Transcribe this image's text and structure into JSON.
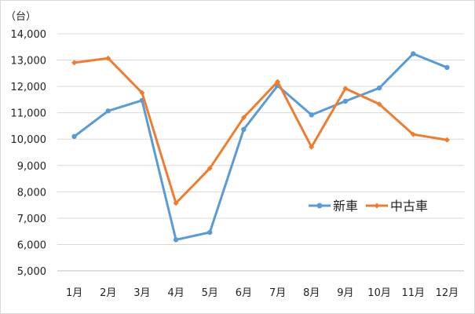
{
  "chart_data": {
    "type": "line",
    "unit_label": "（台）",
    "categories": [
      "1月",
      "2月",
      "3月",
      "4月",
      "5月",
      "6月",
      "7月",
      "8月",
      "9月",
      "10月",
      "11月",
      "12月"
    ],
    "ylim": [
      5000,
      14000
    ],
    "yticks": [
      5000,
      6000,
      7000,
      8000,
      9000,
      10000,
      11000,
      12000,
      13000,
      14000
    ],
    "ytick_labels": [
      "5,000",
      "6,000",
      "7,000",
      "8,000",
      "9,000",
      "10,000",
      "11,000",
      "12,000",
      "13,000",
      "14,000"
    ],
    "grid": true,
    "legend_position": "right",
    "series": [
      {
        "name": "新車",
        "color": "#5b9bd5",
        "marker": "circle",
        "values": [
          10100,
          11070,
          11470,
          6180,
          6460,
          10370,
          12030,
          10920,
          11440,
          11940,
          13240,
          12720
        ]
      },
      {
        "name": "中古車",
        "color": "#ed7d31",
        "marker": "diamond",
        "values": [
          12900,
          13070,
          11760,
          7570,
          8890,
          10820,
          12180,
          9700,
          11920,
          11330,
          10180,
          9970
        ]
      }
    ]
  }
}
